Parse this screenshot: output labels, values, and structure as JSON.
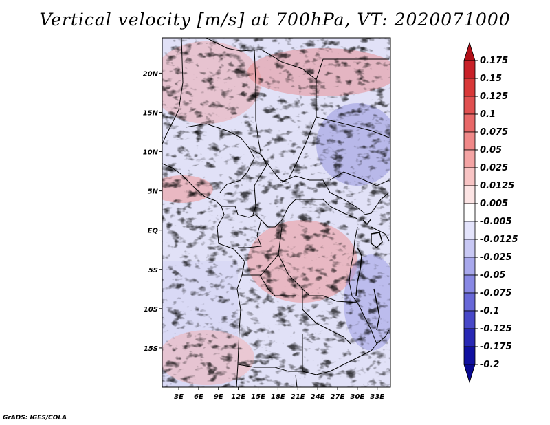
{
  "title": "Vertical velocity [m/s] at 700hPa, VT: 2020071000",
  "credit": "GrADS: IGES/COLA",
  "chart_data": {
    "type": "heatmap",
    "variable": "Vertical velocity",
    "units": "m/s",
    "level": "700hPa",
    "valid_time": "2020071000",
    "x_ticks": [
      "3E",
      "6E",
      "9E",
      "12E",
      "15E",
      "18E",
      "21E",
      "24E",
      "27E",
      "30E",
      "33E"
    ],
    "x_tick_values": [
      3,
      6,
      9,
      12,
      15,
      18,
      21,
      24,
      27,
      30,
      33
    ],
    "y_ticks": [
      "20N",
      "15N",
      "10N",
      "5N",
      "EQ",
      "5S",
      "10S",
      "15S"
    ],
    "y_tick_values": [
      20,
      15,
      10,
      5,
      0,
      -5,
      -10,
      -15
    ],
    "xlim": [
      0.5,
      35
    ],
    "ylim": [
      -20,
      24.5
    ],
    "colorbar": {
      "levels": [
        "0.175",
        "0.15",
        "0.125",
        "0.1",
        "0.075",
        "0.05",
        "0.025",
        "0.0125",
        "0.005",
        "-0.005",
        "-0.0125",
        "-0.025",
        "-0.05",
        "-0.075",
        "-0.1",
        "-0.125",
        "-0.175",
        "-0.2"
      ],
      "colors": [
        "#b01018",
        "#c82028",
        "#d83838",
        "#e05050",
        "#e86868",
        "#f08888",
        "#f4a4a4",
        "#f8c4c4",
        "#fce4e4",
        "#ffffff",
        "#e4e4fc",
        "#c8c8f4",
        "#a8a8ec",
        "#8888e4",
        "#6868d8",
        "#4848c8",
        "#2828b4",
        "#1010a0",
        "#080890"
      ]
    }
  }
}
